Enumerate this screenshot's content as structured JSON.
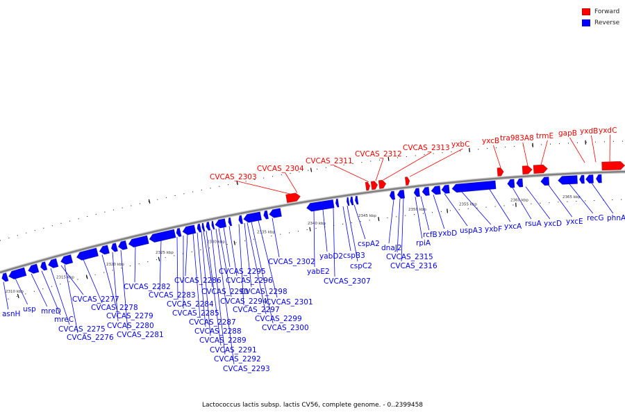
{
  "title": "Lactococcus lactis subsp. lactis CV56, complete genome. - 0..2399458",
  "legend": {
    "forward": {
      "label": "Forward",
      "color": "#ff0000"
    },
    "reverse": {
      "label": "Reverse",
      "color": "#0000ff"
    }
  },
  "colors": {
    "forward": "#ff0000",
    "reverse": "#0000ff",
    "backbone": "#808080",
    "tick": "#000000"
  },
  "scale": {
    "ticks_kbp": [
      "2310 kbp",
      "2315 kbp",
      "2320 kbp",
      "2325 kbp",
      "2330 kbp",
      "2335 kbp",
      "2340 kbp",
      "2345 kbp",
      "2350 kbp",
      "2355 kbp",
      "2360 kbp",
      "2365 kbp"
    ]
  },
  "forward_genes": [
    "CVCAS_2303",
    "CVCAS_2304",
    "CVCAS_2311",
    "CVCAS_2312",
    "CVCAS_2313",
    "yxbC",
    "yxcB",
    "tra983A8",
    "trmE",
    "gapB",
    "yxdB",
    "yxdC"
  ],
  "reverse_genes": [
    "asnH",
    "usp",
    "mreD",
    "mreC",
    "CVCAS_2275",
    "CVCAS_2276",
    "CVCAS_2277",
    "CVCAS_2278",
    "CVCAS_2279",
    "CVCAS_2280",
    "CVCAS_2281",
    "CVCAS_2282",
    "CVCAS_2283",
    "CVCAS_2284",
    "CVCAS_2285",
    "CVCAS_2286",
    "CVCAS_2287",
    "CVCAS_2288",
    "CVCAS_2289",
    "CVCAS_2290",
    "CVCAS_2291",
    "CVCAS_2292",
    "CVCAS_2293",
    "CVCAS_2294",
    "CVCAS_2295",
    "CVCAS_2296",
    "CVCAS_2297",
    "CVCAS_2298",
    "CVCAS_2299",
    "CVCAS_2300",
    "CVCAS_2301",
    "CVCAS_2302",
    "yabE2",
    "yabD2",
    "CVCAS_2307",
    "cspB3",
    "cspC2",
    "cspA2",
    "dnaJ2",
    "CVCAS_2315",
    "CVCAS_2316",
    "rpiA",
    "rcfB",
    "yxbD",
    "uspA3",
    "yxbF",
    "yxcA",
    "rsuA",
    "yxcD",
    "yxcE",
    "recG",
    "phnA"
  ]
}
